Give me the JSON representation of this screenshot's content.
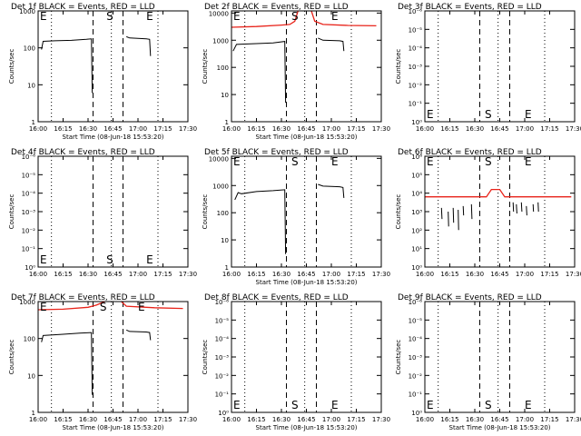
{
  "chart_data": [
    {
      "type": "line",
      "title": "Det 1f BLACK = Events, RED = LLD",
      "xlabel": "Start Time (08-Jun-18 15:53:20)",
      "ylabel": "Counts/sec",
      "xticks": [
        "16:00",
        "16:15",
        "16:30",
        "16:45",
        "17:00",
        "17:15",
        "17:30"
      ],
      "yticks": [
        "1",
        "10",
        "100",
        "1000"
      ],
      "xlim": [
        "16:00",
        "17:30"
      ],
      "ylim": [
        1,
        1000
      ],
      "yscale": "log",
      "dotted_lines": [
        "16:08",
        "16:44",
        "17:12"
      ],
      "dashed_lines": [
        "16:33",
        "16:51"
      ],
      "markers": [
        {
          "label": "E",
          "x": "16:00"
        },
        {
          "label": "S",
          "x": "16:41"
        },
        {
          "label": "E",
          "x": "17:05"
        }
      ],
      "series": [
        {
          "color": "#000000",
          "segments": [
            [
              [
                "16:02",
                90
              ],
              [
                "16:03",
                150
              ],
              [
                "16:10",
                155
              ],
              [
                "16:20",
                160
              ],
              [
                "16:29",
                170
              ],
              [
                "16:32",
                175
              ],
              [
                "16:32.5",
                6
              ]
            ],
            [
              [
                "16:53",
                200
              ],
              [
                "16:55",
                185
              ],
              [
                "17:00",
                180
              ],
              [
                "17:05",
                175
              ],
              [
                "17:07",
                170
              ],
              [
                "17:07.5",
                60
              ]
            ]
          ]
        }
      ]
    },
    {
      "type": "line",
      "title": "Det 2f BLACK = Events, RED = LLD",
      "xlabel": "Start Time (08-Jun-18 15:53:20)",
      "ylabel": "Counts/sec",
      "xticks": [
        "16:00",
        "16:15",
        "16:30",
        "16:45",
        "17:00",
        "17:15",
        "17:30"
      ],
      "yticks": [
        "1",
        "10",
        "100",
        "1000",
        "10000"
      ],
      "xlim": [
        "16:00",
        "17:30"
      ],
      "ylim": [
        1,
        12000
      ],
      "yscale": "log",
      "dotted_lines": [
        "16:08",
        "16:44",
        "17:12"
      ],
      "dashed_lines": [
        "16:33",
        "16:51"
      ],
      "markers": [
        {
          "label": "E",
          "x": "16:00"
        },
        {
          "label": "S",
          "x": "16:36"
        },
        {
          "label": "E",
          "x": "17:00"
        }
      ],
      "series": [
        {
          "color": "#000000",
          "segments": [
            [
              [
                "16:01",
                400
              ],
              [
                "16:03",
                700
              ],
              [
                "16:15",
                750
              ],
              [
                "16:25",
                800
              ],
              [
                "16:32",
                900
              ],
              [
                "16:32.5",
                5
              ]
            ],
            [
              [
                "16:52",
                1200
              ],
              [
                "16:55",
                1000
              ],
              [
                "17:05",
                950
              ],
              [
                "17:07",
                900
              ],
              [
                "17:07.5",
                400
              ]
            ]
          ]
        },
        {
          "color": "#e8231a",
          "segments": [
            [
              [
                "16:00",
                3000
              ],
              [
                "16:15",
                3200
              ],
              [
                "16:30",
                3600
              ],
              [
                "16:35",
                3800
              ],
              [
                "16:38",
                5000
              ],
              [
                "16:40",
                12000
              ]
            ],
            [
              [
                "16:48",
                12000
              ],
              [
                "16:50",
                5000
              ],
              [
                "16:55",
                3800
              ],
              [
                "17:10",
                3500
              ],
              [
                "17:27",
                3400
              ]
            ]
          ]
        }
      ]
    },
    {
      "type": "line",
      "title": "Det 3f BLACK = Events, RED = LLD",
      "xlabel": "",
      "ylabel": "Counts/sec",
      "xticks": [
        "16:00",
        "16:15",
        "16:30",
        "16:45",
        "17:00",
        "17:15",
        "17:30"
      ],
      "yticks": [
        "10⁰",
        "10⁻¹",
        "10⁻²",
        "10⁻³",
        "10⁻⁴",
        "10⁻⁵",
        "10⁻⁶"
      ],
      "xlim": [
        "16:00",
        "17:30"
      ],
      "ylim": [
        0,
        6
      ],
      "yscale": "linear",
      "dotted_lines": [
        "16:08",
        "16:44",
        "17:12"
      ],
      "dashed_lines": [
        "16:33",
        "16:51"
      ],
      "markers": [
        {
          "label": "E",
          "x": "16:00"
        },
        {
          "label": "S",
          "x": "16:36"
        },
        {
          "label": "E",
          "x": "17:00"
        }
      ],
      "series": []
    },
    {
      "type": "line",
      "title": "Det 4f BLACK = Events, RED = LLD",
      "xlabel": "",
      "ylabel": "Counts/sec",
      "xticks": [
        "16:00",
        "16:15",
        "16:30",
        "16:45",
        "17:00",
        "17:15",
        "17:30"
      ],
      "yticks": [
        "10⁰",
        "10⁻¹",
        "10⁻²",
        "10⁻³",
        "10⁻⁴",
        "10⁻⁵",
        "10⁻⁶"
      ],
      "xlim": [
        "16:00",
        "17:30"
      ],
      "ylim": [
        0,
        6
      ],
      "yscale": "linear",
      "dotted_lines": [
        "16:08",
        "16:44",
        "17:12"
      ],
      "dashed_lines": [
        "16:33",
        "16:51"
      ],
      "markers": [
        {
          "label": "E",
          "x": "16:00"
        },
        {
          "label": "S",
          "x": "16:41"
        },
        {
          "label": "E",
          "x": "17:05"
        }
      ],
      "series": []
    },
    {
      "type": "line",
      "title": "Det 5f BLACK = Events, RED = LLD",
      "xlabel": "Start Time (08-Jun-18 15:53:20)",
      "ylabel": "Counts/sec",
      "xticks": [
        "16:00",
        "16:15",
        "16:30",
        "16:45",
        "17:00",
        "17:15",
        "17:30"
      ],
      "yticks": [
        "1",
        "10",
        "100",
        "1000",
        "10000"
      ],
      "xlim": [
        "16:00",
        "17:30"
      ],
      "ylim": [
        1,
        12000
      ],
      "yscale": "log",
      "dotted_lines": [
        "16:08",
        "16:44",
        "17:12"
      ],
      "dashed_lines": [
        "16:33",
        "16:51"
      ],
      "markers": [
        {
          "label": "E",
          "x": "16:00"
        },
        {
          "label": "S",
          "x": "16:36"
        },
        {
          "label": "E",
          "x": "17:00"
        }
      ],
      "series": [
        {
          "color": "#000000",
          "segments": [
            [
              [
                "16:02",
                300
              ],
              [
                "16:04",
                550
              ],
              [
                "16:06",
                500
              ],
              [
                "16:15",
                600
              ],
              [
                "16:25",
                650
              ],
              [
                "16:32",
                700
              ],
              [
                "16:32.5",
                3
              ]
            ],
            [
              [
                "16:52",
                1100
              ],
              [
                "16:55",
                950
              ],
              [
                "17:05",
                900
              ],
              [
                "17:07",
                850
              ],
              [
                "17:07.5",
                350
              ]
            ]
          ]
        }
      ]
    },
    {
      "type": "line",
      "title": "Det 6f BLACK = Events, RED = LLD",
      "xlabel": "",
      "ylabel": "Counts/sec",
      "xticks": [
        "16:00",
        "16:15",
        "16:30",
        "16:45",
        "17:00",
        "17:15",
        "17:30"
      ],
      "yticks": [
        "10⁰",
        "10¹",
        "10²",
        "10³",
        "10⁴",
        "10⁵",
        "10⁶"
      ],
      "xlim": [
        "16:00",
        "17:30"
      ],
      "ylim": [
        0,
        6
      ],
      "yscale": "linear",
      "dotted_lines": [
        "16:08",
        "16:44",
        "17:12"
      ],
      "dashed_lines": [
        "16:33",
        "16:51"
      ],
      "markers": [
        {
          "label": "E",
          "x": "16:00"
        },
        {
          "label": "S",
          "x": "16:36"
        },
        {
          "label": "E",
          "x": "17:00"
        }
      ],
      "series": [
        {
          "color": "#e8231a",
          "segments": [
            [
              [
                "16:00",
                3.8
              ],
              [
                "16:30",
                3.8
              ],
              [
                "16:37",
                3.8
              ],
              [
                "16:40",
                4.2
              ],
              [
                "16:45",
                4.2
              ],
              [
                "16:48",
                3.8
              ],
              [
                "17:28",
                3.8
              ]
            ]
          ]
        },
        {
          "color": "#000000",
          "segments": [
            [
              [
                "16:10",
                3.2
              ],
              [
                "16:10.3",
                2.6
              ]
            ],
            [
              [
                "16:14",
                3.0
              ],
              [
                "16:14.3",
                2.2
              ]
            ],
            [
              [
                "16:17",
                3.2
              ],
              [
                "16:17.3",
                2.4
              ]
            ],
            [
              [
                "16:20",
                3.1
              ],
              [
                "16:20.3",
                2.0
              ]
            ],
            [
              [
                "16:23",
                3.3
              ],
              [
                "16:23.3",
                2.8
              ]
            ],
            [
              [
                "16:28",
                3.4
              ],
              [
                "16:28.3",
                2.6
              ]
            ],
            [
              [
                "16:53",
                3.5
              ],
              [
                "16:53.3",
                3.0
              ]
            ],
            [
              [
                "16:55",
                3.4
              ],
              [
                "16:55.3",
                2.9
              ]
            ],
            [
              [
                "16:58",
                3.5
              ],
              [
                "16:58.3",
                3.0
              ]
            ],
            [
              [
                "17:01",
                3.3
              ],
              [
                "17:01.3",
                2.8
              ]
            ],
            [
              [
                "17:05",
                3.4
              ],
              [
                "17:05.3",
                3.0
              ]
            ],
            [
              [
                "17:08",
                3.5
              ],
              [
                "17:08.3",
                3.0
              ]
            ]
          ]
        }
      ]
    },
    {
      "type": "line",
      "title": "Det 7f BLACK = Events, RED = LLD",
      "xlabel": "Start Time (08-Jun-18 15:53:20)",
      "ylabel": "Counts/sec",
      "xticks": [
        "16:00",
        "16:15",
        "16:30",
        "16:45",
        "17:00",
        "17:15",
        "17:30"
      ],
      "yticks": [
        "1",
        "10",
        "100",
        "1000"
      ],
      "xlim": [
        "16:00",
        "17:30"
      ],
      "ylim": [
        1,
        1000
      ],
      "yscale": "log",
      "dotted_lines": [
        "16:08",
        "16:44",
        "17:12"
      ],
      "dashed_lines": [
        "16:33",
        "16:51"
      ],
      "markers": [
        {
          "label": "E",
          "x": "16:00"
        },
        {
          "label": "S",
          "x": "16:37"
        },
        {
          "label": "E",
          "x": "17:00"
        }
      ],
      "series": [
        {
          "color": "#000000",
          "segments": [
            [
              [
                "16:02",
                80
              ],
              [
                "16:03",
                120
              ],
              [
                "16:15",
                130
              ],
              [
                "16:25",
                140
              ],
              [
                "16:32",
                145
              ],
              [
                "16:32.5",
                3
              ]
            ],
            [
              [
                "16:53",
                170
              ],
              [
                "16:55",
                155
              ],
              [
                "17:05",
                150
              ],
              [
                "17:07",
                145
              ],
              [
                "17:07.5",
                90
              ]
            ]
          ]
        },
        {
          "color": "#e8231a",
          "segments": [
            [
              [
                "16:00",
                600
              ],
              [
                "16:15",
                620
              ],
              [
                "16:30",
                700
              ],
              [
                "16:35",
                800
              ],
              [
                "16:40",
                1000
              ]
            ],
            [
              [
                "16:50",
                1000
              ],
              [
                "16:53",
                750
              ],
              [
                "17:10",
                680
              ],
              [
                "17:27",
                650
              ]
            ]
          ]
        }
      ]
    },
    {
      "type": "line",
      "title": "Det 8f BLACK = Events, RED = LLD",
      "xlabel": "Start Time (08-Jun-18 15:53:20)",
      "ylabel": "Counts/sec",
      "xticks": [
        "16:00",
        "16:15",
        "16:30",
        "16:45",
        "17:00",
        "17:15",
        "17:30"
      ],
      "yticks": [
        "10⁰",
        "10⁻¹",
        "10⁻²",
        "10⁻³",
        "10⁻⁴",
        "10⁻⁵",
        "10⁻⁶"
      ],
      "xlim": [
        "16:00",
        "17:30"
      ],
      "ylim": [
        0,
        6
      ],
      "yscale": "linear",
      "dotted_lines": [
        "16:08",
        "16:44",
        "17:12"
      ],
      "dashed_lines": [
        "16:33",
        "16:51"
      ],
      "markers": [
        {
          "label": "E",
          "x": "16:00"
        },
        {
          "label": "S",
          "x": "16:36"
        },
        {
          "label": "E",
          "x": "17:00"
        }
      ],
      "series": []
    },
    {
      "type": "line",
      "title": "Det 9f BLACK = Events, RED = LLD",
      "xlabel": "Start Time (08-Jun-18 15:53:20)",
      "ylabel": "Counts/sec",
      "xticks": [
        "16:00",
        "16:15",
        "16:30",
        "16:45",
        "17:00",
        "17:15",
        "17:30"
      ],
      "yticks": [
        "10⁰",
        "10⁻¹",
        "10⁻²",
        "10⁻³",
        "10⁻⁴",
        "10⁻⁵",
        "10⁻⁶"
      ],
      "xlim": [
        "16:00",
        "17:30"
      ],
      "ylim": [
        0,
        6
      ],
      "yscale": "linear",
      "dotted_lines": [
        "16:08",
        "16:44",
        "17:12"
      ],
      "dashed_lines": [
        "16:33",
        "16:51"
      ],
      "markers": [
        {
          "label": "E",
          "x": "16:00"
        },
        {
          "label": "S",
          "x": "16:36"
        },
        {
          "label": "E",
          "x": "17:00"
        }
      ],
      "series": []
    }
  ]
}
